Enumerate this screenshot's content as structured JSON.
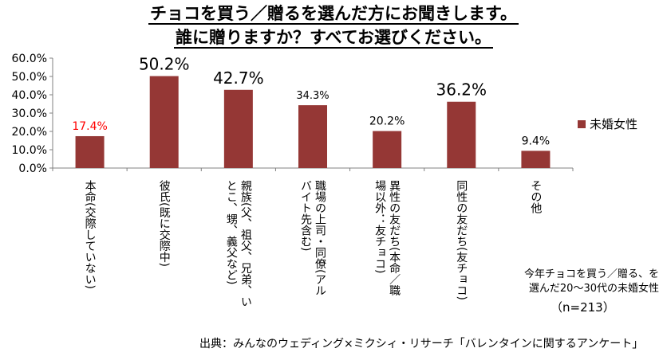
{
  "title_line1": "チョコを買う／贈るを選んだ方にお聞きします。",
  "title_line2": "誰に贈りますか？すべてお選びください。",
  "note_line1": "今年チョコを買う／贈る、を",
  "note_line2": "選んだ20〜30代の未婚女性",
  "sample_size": "（n=213）",
  "source": "出典：みんなのウェディング×ミクシィ・リサーチ「バレンタインに関するアンケート」",
  "colors": {
    "bar": "#953735",
    "highlight_label": "#ff0000"
  },
  "chart_data": {
    "type": "bar",
    "ylim": [
      0,
      60
    ],
    "yticks": [
      "0.0%",
      "10.0%",
      "20.0%",
      "30.0%",
      "40.0%",
      "50.0%",
      "60.0%"
    ],
    "legend": "未婚女性",
    "legend_position": "right",
    "categories": [
      "本命(交際していない)",
      "彼氏(既に交際中)",
      "親族(父、祖父、兄弟、いとこ、甥、義父など)",
      "職場の上司・同僚(アルバイト先含む)",
      "異性の友だち(本命／職場以外：友チョコ)",
      "同性の友だち(友チョコ)",
      "その他"
    ],
    "category_columns": [
      [
        "本命(交際していない)"
      ],
      [
        "彼氏(既に交際中)"
      ],
      [
        "親族(父、祖父、兄弟、い",
        "とこ、甥、義父など)"
      ],
      [
        "職場の上司・同僚(アル",
        "バイト先含む)"
      ],
      [
        "異性の友だち(本命／職",
        "場以外：友チョコ)"
      ],
      [
        "同性の友だち(友チョコ)"
      ],
      [
        "その他"
      ]
    ],
    "values": [
      17.4,
      50.2,
      42.7,
      34.3,
      20.2,
      36.2,
      9.4
    ],
    "value_labels": [
      "17.4%",
      "50.2%",
      "42.7%",
      "34.3%",
      "20.2%",
      "36.2%",
      "9.4%"
    ]
  }
}
